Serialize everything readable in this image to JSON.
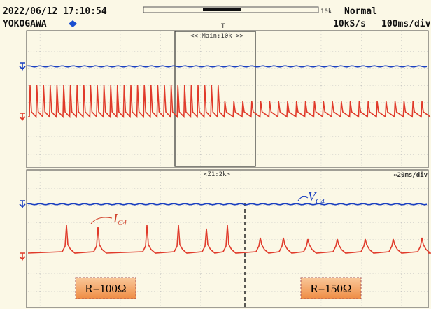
{
  "header": {
    "datetime": "2022/06/12 17:10:54",
    "memory": "10k",
    "brand": "YOKOGAWA",
    "trigger_mode": "Normal",
    "sample_rate": "10kS/s",
    "timebase": "100ms/div"
  },
  "main_panel": {
    "zoom_label": "<< Main:10k >>"
  },
  "zoom_panel": {
    "zoom_label": "<Z1:2k>",
    "timebase": "↔20ms/div"
  },
  "annotations": {
    "voltage": {
      "symbol": "V",
      "subscript": "C4"
    },
    "current": {
      "symbol": "I",
      "subscript": "C4"
    },
    "left_region": "R=100Ω",
    "right_region": "R=150Ω"
  }
}
